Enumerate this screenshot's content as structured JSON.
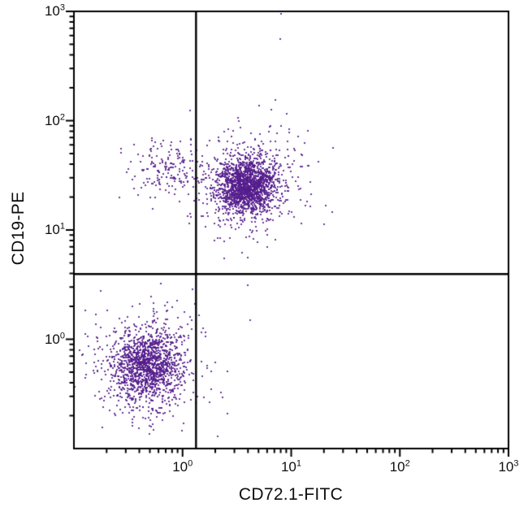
{
  "chart_data": {
    "type": "scatter",
    "subtype": "flow-cytometry-quadrant-dot-plot",
    "title": "",
    "xlabel": "CD72.1-FITC",
    "ylabel": "CD19-PE",
    "xscale": "log",
    "yscale": "log",
    "xlim": [
      0.1,
      1000
    ],
    "ylim": [
      0.1,
      1000
    ],
    "x_ticks": [
      {
        "value": 1,
        "base": "10",
        "exponent": "0"
      },
      {
        "value": 10,
        "base": "10",
        "exponent": "1"
      },
      {
        "value": 100,
        "base": "10",
        "exponent": "2"
      },
      {
        "value": 1000,
        "base": "10",
        "exponent": "3"
      }
    ],
    "y_ticks": [
      {
        "value": 1,
        "base": "10",
        "exponent": "0"
      },
      {
        "value": 10,
        "base": "10",
        "exponent": "1"
      },
      {
        "value": 100,
        "base": "10",
        "exponent": "2"
      },
      {
        "value": 1000,
        "base": "10",
        "exponent": "3"
      }
    ],
    "minor_ticks_per_decade": [
      2,
      3,
      4,
      5,
      6,
      7,
      8,
      9
    ],
    "grid": false,
    "legend": null,
    "quadrant_gates": {
      "x_value": 1.33,
      "y_value": 3.95
    },
    "populations": [
      {
        "name": "double-negative-lymphocytes-core",
        "center_x": 0.48,
        "center_y": 0.58,
        "sigma_log_x": 0.155,
        "sigma_log_y": 0.16,
        "count": 1150
      },
      {
        "name": "double-negative-lymphocytes-halo",
        "center_x": 0.48,
        "center_y": 0.58,
        "sigma_log_x": 0.3,
        "sigma_log_y": 0.29,
        "count": 420
      },
      {
        "name": "cd19pos-cd72pos-b-cells-core",
        "center_x": 3.9,
        "center_y": 25.5,
        "sigma_log_x": 0.13,
        "sigma_log_y": 0.12,
        "count": 1400
      },
      {
        "name": "cd19pos-cd72pos-b-cells-halo",
        "center_x": 3.9,
        "center_y": 25.5,
        "sigma_log_x": 0.26,
        "sigma_log_y": 0.235,
        "count": 550
      },
      {
        "name": "cd19pos-cd72neg-scatter",
        "center_x": 0.72,
        "center_y": 36,
        "sigma_log_x": 0.16,
        "sigma_log_y": 0.115,
        "count": 165
      }
    ],
    "outliers": [
      [
        7.9,
        560
      ],
      [
        8.1,
        950
      ],
      [
        24,
        14.5
      ],
      [
        7.2,
        155
      ],
      [
        5.1,
        137
      ],
      [
        2.1,
        0.13
      ],
      [
        0.26,
        20
      ]
    ],
    "style": {
      "dot_color": "#541b8c",
      "dot_alpha": 0.85,
      "dot_size_px": 2,
      "axis_color": "#000000",
      "gate_line_color": "#000000",
      "background": "#ffffff"
    },
    "random_seed": 1234
  }
}
